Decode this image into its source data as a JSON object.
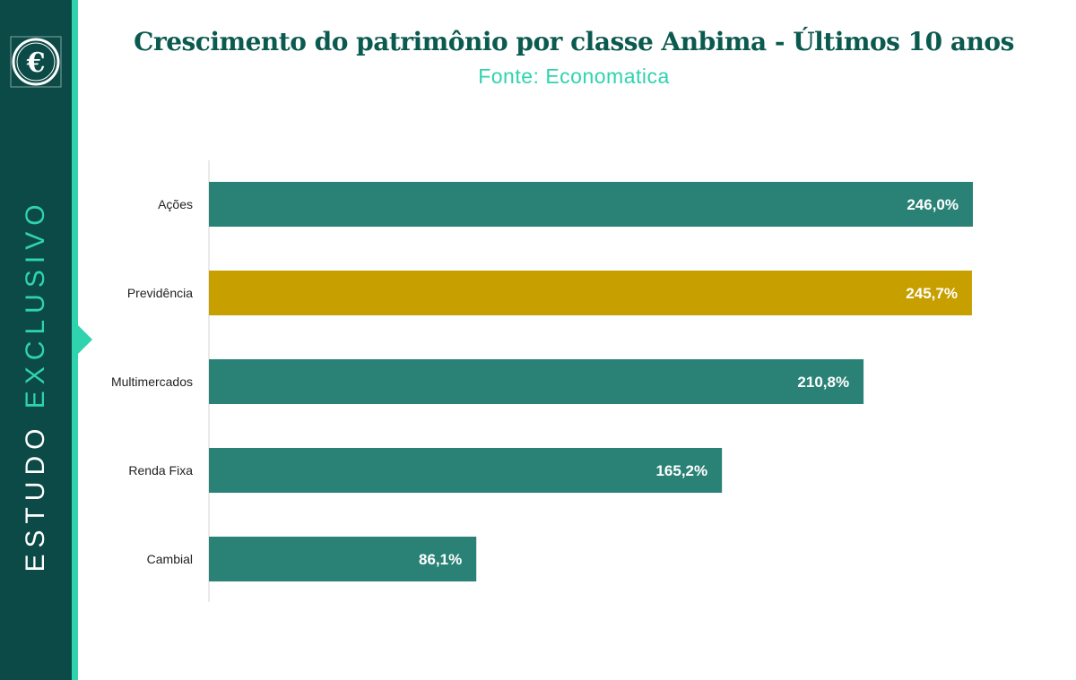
{
  "title": "Crescimento do patrimônio por classe Anbima - Últimos 10 anos",
  "subtitle": "Fonte: Economatica",
  "sidebar": {
    "label_part1": "ESTUDO",
    "label_part2": "EXCLUSIVO",
    "logo_glyph": "€",
    "logo_icon": "euro-emblem-icon"
  },
  "colors": {
    "sidebar": "#0b4a46",
    "accent": "#2fd3ae",
    "bar_default": "#2a8276",
    "bar_highlight": "#c7a000",
    "title": "#0b5a4f"
  },
  "chart_data": {
    "type": "bar",
    "orientation": "horizontal",
    "categories": [
      "Ações",
      "Previdência",
      "Multimercados",
      "Renda Fixa",
      "Cambial"
    ],
    "values": [
      246.0,
      245.7,
      210.8,
      165.2,
      86.1
    ],
    "value_labels": [
      "246,0%",
      "245,7%",
      "210,8%",
      "165,2%",
      "86,1%"
    ],
    "highlight_category": "Previdência",
    "xlim": [
      0,
      246.0
    ],
    "grid": false,
    "legend": "none"
  }
}
